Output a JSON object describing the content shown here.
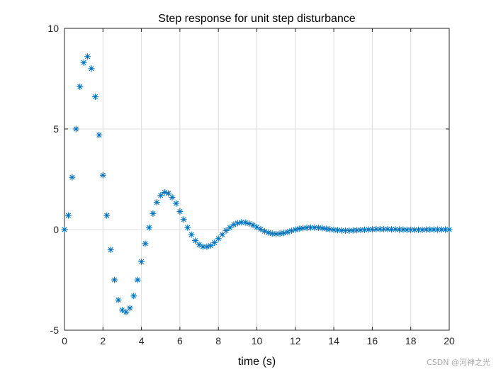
{
  "chart_data": {
    "type": "scatter",
    "title": "Step response for unit step disturbance",
    "xlabel": "time (s)",
    "ylabel": "",
    "xlim": [
      0,
      20
    ],
    "ylim": [
      -5,
      10
    ],
    "xticks": [
      "0",
      "2",
      "4",
      "6",
      "8",
      "10",
      "12",
      "14",
      "16",
      "18",
      "20"
    ],
    "yticks": [
      "-5",
      "0",
      "5",
      "10"
    ],
    "grid": true,
    "marker": "asterisk",
    "series_color": "#0072bd",
    "series": [
      {
        "x": [
          0,
          0.2,
          0.4,
          0.6,
          0.8,
          1.0,
          1.2,
          1.4,
          1.6,
          1.8,
          2.0,
          2.2,
          2.4,
          2.6,
          2.8,
          3.0,
          3.2,
          3.4,
          3.6,
          3.8,
          4.0,
          4.2,
          4.4,
          4.6,
          4.8,
          5.0,
          5.2,
          5.4,
          5.6,
          5.8,
          6.0,
          6.2,
          6.4,
          6.6,
          6.8,
          7.0,
          7.2,
          7.4,
          7.6,
          7.8,
          8.0,
          8.2,
          8.4,
          8.6,
          8.8,
          9.0,
          9.2,
          9.4,
          9.6,
          9.8,
          10.0,
          10.2,
          10.4,
          10.6,
          10.8,
          11.0,
          11.2,
          11.4,
          11.6,
          11.8,
          12.0,
          12.2,
          12.4,
          12.6,
          12.8,
          13.0,
          13.2,
          13.4,
          13.6,
          13.8,
          14.0,
          14.2,
          14.4,
          14.6,
          14.8,
          15.0,
          15.2,
          15.4,
          15.6,
          15.8,
          16.0,
          16.2,
          16.4,
          16.6,
          16.8,
          17.0,
          17.2,
          17.4,
          17.6,
          17.8,
          18.0,
          18.2,
          18.4,
          18.6,
          18.8,
          19.0,
          19.2,
          19.4,
          19.6,
          19.8,
          20.0
        ],
        "y": [
          0.0,
          0.7,
          2.6,
          5.0,
          7.1,
          8.3,
          8.6,
          8.0,
          6.6,
          4.7,
          2.7,
          0.7,
          -1.0,
          -2.5,
          -3.5,
          -4.0,
          -4.1,
          -3.9,
          -3.3,
          -2.5,
          -1.6,
          -0.7,
          0.1,
          0.8,
          1.35,
          1.7,
          1.85,
          1.8,
          1.6,
          1.3,
          0.9,
          0.5,
          0.1,
          -0.25,
          -0.55,
          -0.75,
          -0.85,
          -0.85,
          -0.8,
          -0.65,
          -0.45,
          -0.25,
          -0.05,
          0.1,
          0.25,
          0.32,
          0.36,
          0.35,
          0.3,
          0.22,
          0.12,
          0.02,
          -0.08,
          -0.15,
          -0.2,
          -0.22,
          -0.2,
          -0.17,
          -0.12,
          -0.06,
          0.0,
          0.04,
          0.07,
          0.09,
          0.1,
          0.1,
          0.09,
          0.07,
          0.04,
          0.01,
          -0.01,
          -0.03,
          -0.04,
          -0.05,
          -0.05,
          -0.04,
          -0.03,
          -0.02,
          -0.01,
          0.0,
          0.01,
          0.02,
          0.02,
          0.02,
          0.02,
          0.01,
          0.01,
          0.0,
          0.0,
          -0.01,
          -0.01,
          -0.01,
          -0.01,
          -0.01,
          0.0,
          0.0,
          0.0,
          0.0,
          0.0,
          0.0,
          0.0
        ]
      }
    ]
  },
  "watermark": "CSDN @河神之光"
}
